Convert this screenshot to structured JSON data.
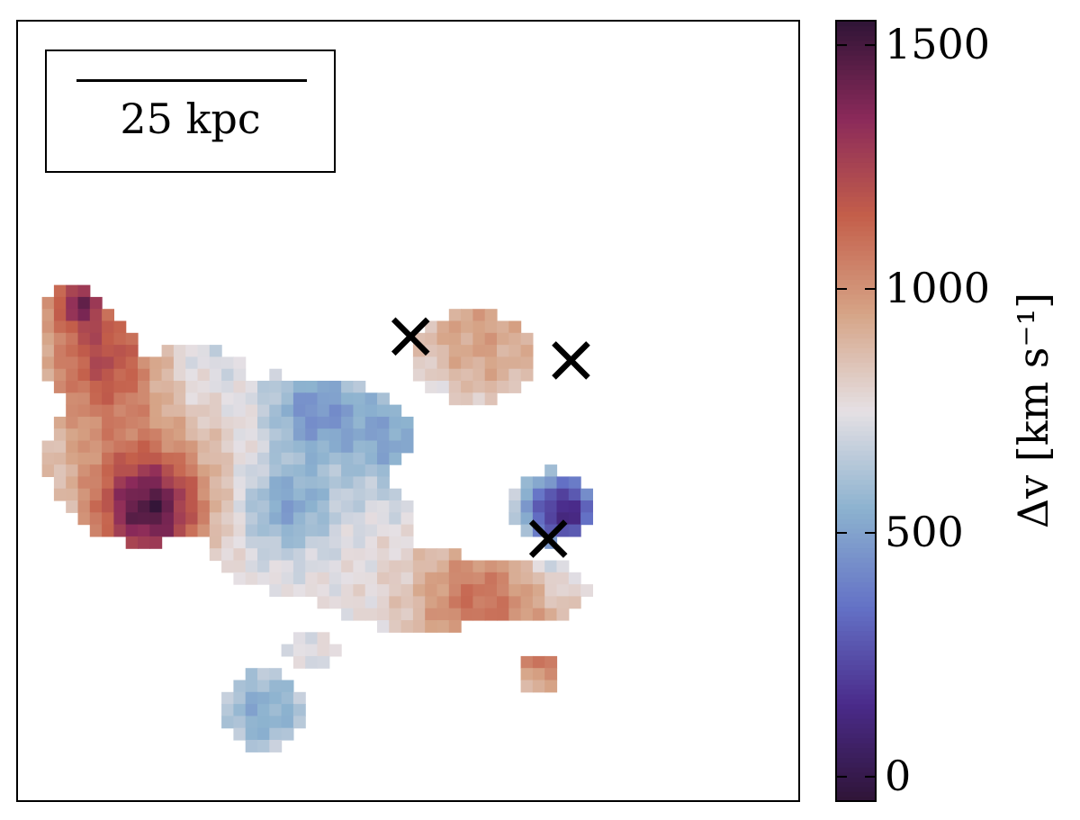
{
  "chart_data": {
    "type": "heatmap",
    "title": "",
    "scalebar_label": "25 kpc",
    "colorbar": {
      "label": "Δv [km s⁻¹]",
      "ticks": [
        0,
        500,
        1000,
        1500
      ],
      "tick_labels": [
        "0",
        "500",
        "1000",
        "1500"
      ],
      "range": [
        -50,
        1550
      ],
      "colormap": "twilight-shifted",
      "colormap_stops": [
        "#2f1436",
        "#4a2b8a",
        "#6472c6",
        "#8cb2cf",
        "#e5e0e4",
        "#d6a487",
        "#c45f4a",
        "#8b2a5a",
        "#2f1436"
      ]
    },
    "grid_size": [
      64,
      64
    ],
    "markers": [
      {
        "label": "x",
        "col": 32.8,
        "row": 26.3
      },
      {
        "label": "x",
        "col": 46.2,
        "row": 28.3
      },
      {
        "label": "x",
        "col": 44.3,
        "row": 43.2
      }
    ]
  }
}
